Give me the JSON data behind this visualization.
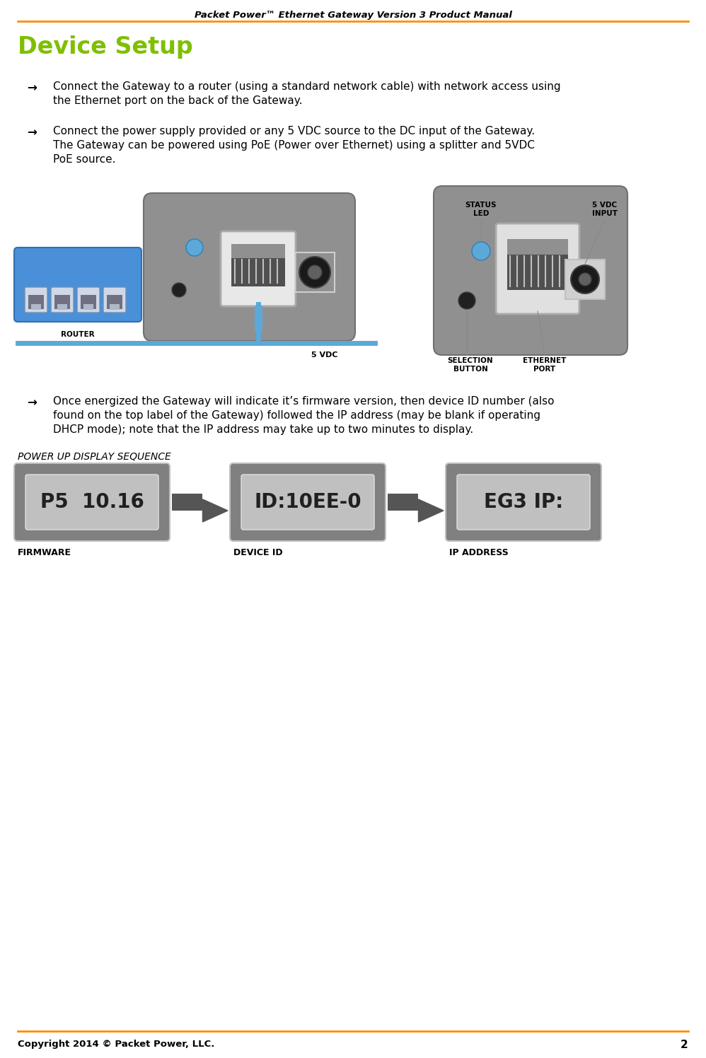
{
  "header_title": "Packet Power™ Ethernet Gateway Version 3 Product Manual",
  "header_line_color": "#FF8C00",
  "section_title": "Device Setup",
  "section_title_color": "#7FBF00",
  "bullet_arrow": "→",
  "bullet1_line1": "Connect the Gateway to a router (using a standard network cable) with network access using",
  "bullet1_line2": "the Ethernet port on the back of the Gateway.",
  "bullet2_line1": "Connect the power supply provided or any 5 VDC source to the DC input of the Gateway.",
  "bullet2_line2": "The Gateway can be powered using PoE (Power over Ethernet) using a splitter and 5VDC",
  "bullet2_line3": "PoE source.",
  "bullet3_line1": "Once energized the Gateway will indicate it’s firmware version, then device ID number (also",
  "bullet3_line2": "found on the top label of the Gateway) followed the IP address (may be blank if operating",
  "bullet3_line3": "DHCP mode); note that the IP address may take up to two minutes to display.",
  "power_up_label": "POWER UP DISPLAY SEQUENCE",
  "display1_text": "P5  10.16",
  "display2_text": "ID:10EE-0",
  "display3_text": "EG3 IP:",
  "label1": "FIRMWARE",
  "label2": "DEVICE ID",
  "label3": "IP ADDRESS",
  "footer_copyright": "Copyright 2014 © Packet Power, LLC.",
  "footer_page": "2",
  "bg_color": "#FFFFFF",
  "text_color": "#000000",
  "display_outer_bg": "#909090",
  "display_inner_bg": "#C0C0C0",
  "display_text_color": "#000000",
  "router_color": "#4A90D9",
  "gateway_color": "#909090",
  "cable_color": "#5BA8D9",
  "arrow_color": "#555555"
}
